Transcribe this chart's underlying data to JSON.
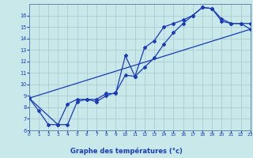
{
  "xlabel": "Graphe des températures (°c)",
  "bg_color": "#c8e8ea",
  "grid_color": "#a8c8cc",
  "line_color": "#1a3ab8",
  "axis_label_bg": "#2244aa",
  "axis_label_color": "#ffffff",
  "xmin": 0,
  "xmax": 23,
  "ymin": 6,
  "ymax": 17,
  "ytick_vals": [
    6,
    7,
    8,
    9,
    10,
    11,
    12,
    13,
    14,
    15,
    16
  ],
  "xtick_vals": [
    0,
    1,
    2,
    3,
    4,
    5,
    6,
    7,
    8,
    9,
    10,
    11,
    12,
    13,
    14,
    15,
    16,
    17,
    18,
    19,
    20,
    21,
    22,
    23
  ],
  "line1_x": [
    0,
    1,
    2,
    3,
    4,
    5,
    6,
    7,
    8,
    9,
    10,
    11,
    12,
    13,
    14,
    15,
    16,
    17,
    18,
    19,
    20,
    21,
    22,
    23
  ],
  "line1_y": [
    8.8,
    7.7,
    6.5,
    6.5,
    8.3,
    8.7,
    8.7,
    8.7,
    9.2,
    9.2,
    12.5,
    10.7,
    13.2,
    13.8,
    15.0,
    15.3,
    15.6,
    16.0,
    16.7,
    16.6,
    15.7,
    15.3,
    15.3,
    15.3
  ],
  "line2_x": [
    0,
    3,
    4,
    5,
    6,
    7,
    8,
    9,
    10,
    11,
    12,
    13,
    14,
    15,
    16,
    17,
    18,
    19,
    20,
    21,
    22,
    23
  ],
  "line2_y": [
    8.8,
    6.5,
    6.5,
    8.5,
    8.7,
    8.5,
    9.0,
    9.3,
    10.8,
    10.7,
    11.5,
    12.3,
    13.5,
    14.5,
    15.3,
    16.0,
    16.7,
    16.6,
    15.5,
    15.3,
    15.3,
    14.8
  ],
  "line3_x": [
    0,
    23
  ],
  "line3_y": [
    8.8,
    14.8
  ]
}
